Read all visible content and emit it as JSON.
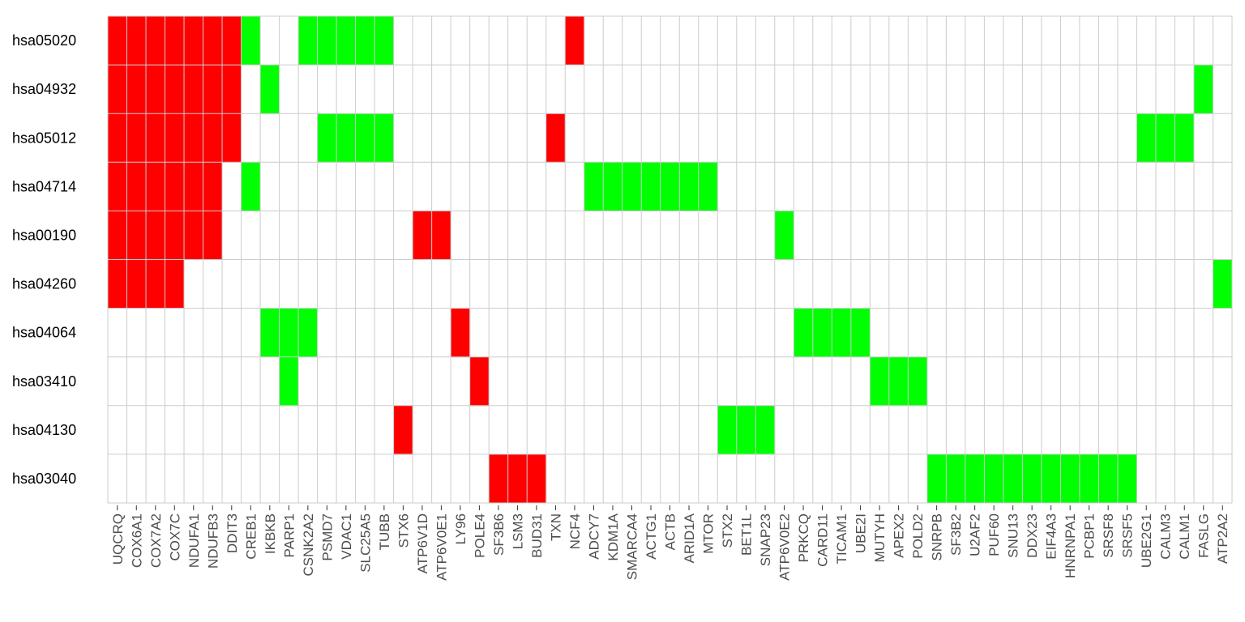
{
  "chart_data": {
    "type": "heatmap",
    "title": "",
    "xlabel": "",
    "ylabel": "",
    "grid": true,
    "legend": "none",
    "colors": {
      "up": "#ff0000",
      "down": "#00ff00",
      "none": "#ffffff",
      "grid": "#cccccc"
    },
    "rows": [
      "hsa05020",
      "hsa04932",
      "hsa05012",
      "hsa04714",
      "hsa00190",
      "hsa04260",
      "hsa04064",
      "hsa03410",
      "hsa04130",
      "hsa03040"
    ],
    "columns": [
      "UQCRQ",
      "COX6A1",
      "COX7A2",
      "COX7C",
      "NDUFA1",
      "NDUFB3",
      "DDIT3",
      "CREB1",
      "IKBKB",
      "PARP1",
      "CSNK2A2",
      "PSMD7",
      "VDAC1",
      "SLC25A5",
      "TUBB",
      "STX6",
      "ATP6V1D",
      "ATP6V0E1",
      "LY96",
      "POLE4",
      "SF3B6",
      "LSM3",
      "BUD31",
      "TXN",
      "NCF4",
      "ADCY7",
      "KDM1A",
      "SMARCA4",
      "ACTG1",
      "ACTB",
      "ARID1A",
      "MTOR",
      "STX2",
      "BET1L",
      "SNAP23",
      "ATP6V0E2",
      "PRKCQ",
      "CARD11",
      "TICAM1",
      "UBE2I",
      "MUTYH",
      "APEX2",
      "POLD2",
      "SNRPB",
      "SF3B2",
      "U2AF2",
      "PUF60",
      "SNU13",
      "DDX23",
      "EIF4A3",
      "HNRNPA1",
      "PCBP1",
      "SRSF8",
      "SRSF5",
      "UBE2G1",
      "CALM3",
      "CALM1",
      "FASLG",
      "ATP2A2"
    ],
    "values": [
      [
        1,
        1,
        1,
        1,
        1,
        1,
        1,
        -1,
        0,
        0,
        -1,
        -1,
        -1,
        -1,
        -1,
        0,
        0,
        0,
        0,
        0,
        0,
        0,
        0,
        0,
        1,
        0,
        0,
        0,
        0,
        0,
        0,
        0,
        0,
        0,
        0,
        0,
        0,
        0,
        0,
        0,
        0,
        0,
        0,
        0,
        0,
        0,
        0,
        0,
        0,
        0,
        0,
        0,
        0,
        0,
        0,
        0,
        0,
        0,
        0
      ],
      [
        1,
        1,
        1,
        1,
        1,
        1,
        1,
        0,
        -1,
        0,
        0,
        0,
        0,
        0,
        0,
        0,
        0,
        0,
        0,
        0,
        0,
        0,
        0,
        0,
        0,
        0,
        0,
        0,
        0,
        0,
        0,
        0,
        0,
        0,
        0,
        0,
        0,
        0,
        0,
        0,
        0,
        0,
        0,
        0,
        0,
        0,
        0,
        0,
        0,
        0,
        0,
        0,
        0,
        0,
        0,
        0,
        0,
        -1,
        0
      ],
      [
        1,
        1,
        1,
        1,
        1,
        1,
        1,
        0,
        0,
        0,
        0,
        -1,
        -1,
        -1,
        -1,
        0,
        0,
        0,
        0,
        0,
        0,
        0,
        0,
        1,
        0,
        0,
        0,
        0,
        0,
        0,
        0,
        0,
        0,
        0,
        0,
        0,
        0,
        0,
        0,
        0,
        0,
        0,
        0,
        0,
        0,
        0,
        0,
        0,
        0,
        0,
        0,
        0,
        0,
        0,
        -1,
        -1,
        -1,
        0,
        0
      ],
      [
        1,
        1,
        1,
        1,
        1,
        1,
        0,
        -1,
        0,
        0,
        0,
        0,
        0,
        0,
        0,
        0,
        0,
        0,
        0,
        0,
        0,
        0,
        0,
        0,
        0,
        -1,
        -1,
        -1,
        -1,
        -1,
        -1,
        -1,
        0,
        0,
        0,
        0,
        0,
        0,
        0,
        0,
        0,
        0,
        0,
        0,
        0,
        0,
        0,
        0,
        0,
        0,
        0,
        0,
        0,
        0,
        0,
        0,
        0,
        0,
        0
      ],
      [
        1,
        1,
        1,
        1,
        1,
        1,
        0,
        0,
        0,
        0,
        0,
        0,
        0,
        0,
        0,
        0,
        1,
        1,
        0,
        0,
        0,
        0,
        0,
        0,
        0,
        0,
        0,
        0,
        0,
        0,
        0,
        0,
        0,
        0,
        0,
        -1,
        0,
        0,
        0,
        0,
        0,
        0,
        0,
        0,
        0,
        0,
        0,
        0,
        0,
        0,
        0,
        0,
        0,
        0,
        0,
        0,
        0,
        0,
        0
      ],
      [
        1,
        1,
        1,
        1,
        0,
        0,
        0,
        0,
        0,
        0,
        0,
        0,
        0,
        0,
        0,
        0,
        0,
        0,
        0,
        0,
        0,
        0,
        0,
        0,
        0,
        0,
        0,
        0,
        0,
        0,
        0,
        0,
        0,
        0,
        0,
        0,
        0,
        0,
        0,
        0,
        0,
        0,
        0,
        0,
        0,
        0,
        0,
        0,
        0,
        0,
        0,
        0,
        0,
        0,
        0,
        0,
        0,
        0,
        -1
      ],
      [
        0,
        0,
        0,
        0,
        0,
        0,
        0,
        0,
        -1,
        -1,
        -1,
        0,
        0,
        0,
        0,
        0,
        0,
        0,
        1,
        0,
        0,
        0,
        0,
        0,
        0,
        0,
        0,
        0,
        0,
        0,
        0,
        0,
        0,
        0,
        0,
        0,
        -1,
        -1,
        -1,
        -1,
        0,
        0,
        0,
        0,
        0,
        0,
        0,
        0,
        0,
        0,
        0,
        0,
        0,
        0,
        0,
        0,
        0,
        0,
        0
      ],
      [
        0,
        0,
        0,
        0,
        0,
        0,
        0,
        0,
        0,
        -1,
        0,
        0,
        0,
        0,
        0,
        0,
        0,
        0,
        0,
        1,
        0,
        0,
        0,
        0,
        0,
        0,
        0,
        0,
        0,
        0,
        0,
        0,
        0,
        0,
        0,
        0,
        0,
        0,
        0,
        0,
        -1,
        -1,
        -1,
        0,
        0,
        0,
        0,
        0,
        0,
        0,
        0,
        0,
        0,
        0,
        0,
        0,
        0,
        0,
        0
      ],
      [
        0,
        0,
        0,
        0,
        0,
        0,
        0,
        0,
        0,
        0,
        0,
        0,
        0,
        0,
        0,
        1,
        0,
        0,
        0,
        0,
        0,
        0,
        0,
        0,
        0,
        0,
        0,
        0,
        0,
        0,
        0,
        0,
        -1,
        -1,
        -1,
        0,
        0,
        0,
        0,
        0,
        0,
        0,
        0,
        0,
        0,
        0,
        0,
        0,
        0,
        0,
        0,
        0,
        0,
        0,
        0,
        0,
        0,
        0,
        0
      ],
      [
        0,
        0,
        0,
        0,
        0,
        0,
        0,
        0,
        0,
        0,
        0,
        0,
        0,
        0,
        0,
        0,
        0,
        0,
        0,
        0,
        1,
        1,
        1,
        0,
        0,
        0,
        0,
        0,
        0,
        0,
        0,
        0,
        0,
        0,
        0,
        0,
        0,
        0,
        0,
        0,
        0,
        0,
        0,
        -1,
        -1,
        -1,
        -1,
        -1,
        -1,
        -1,
        -1,
        -1,
        -1,
        -1,
        0,
        0,
        0,
        0,
        0
      ]
    ]
  }
}
